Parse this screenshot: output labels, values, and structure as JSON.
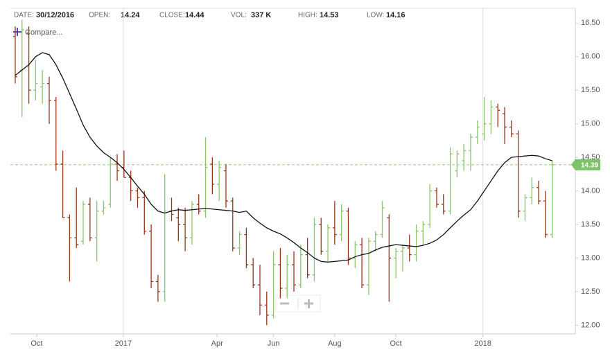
{
  "header": {
    "items": [
      {
        "label": "DATE:",
        "value": "30/12/2016"
      },
      {
        "label": "OPEN:",
        "value": "14.24"
      },
      {
        "label": "CLOSE:",
        "value": "14.44"
      },
      {
        "label": "VOL:",
        "value": "337 K"
      },
      {
        "label": "HIGH:",
        "value": "14.53"
      },
      {
        "label": "LOW:",
        "value": "14.16"
      }
    ],
    "compare": "Compare..."
  },
  "chart_data": {
    "type": "ohlc",
    "up_color": "#8cc56a",
    "down_color": "#9c3419",
    "open": [
      16.3,
      15.8,
      16.35,
      15.5,
      15.55,
      15.6,
      15.35,
      14.4,
      13.6,
      13.3,
      13.25,
      13.8,
      13.3,
      13.7,
      13.8,
      14.4,
      14.35,
      14.2,
      14.0,
      13.9,
      13.4,
      12.65,
      12.5,
      13.7,
      13.6,
      13.5,
      13.3,
      13.8,
      13.7,
      14.4,
      14.1,
      14.3,
      13.85,
      13.15,
      13.35,
      12.9,
      12.6,
      12.3,
      12.15,
      12.9,
      12.55,
      12.9,
      12.6,
      13.05,
      12.75,
      13.5,
      13.1,
      13.45,
      13.35,
      13.7,
      13.0,
      13.2,
      12.6,
      13.25,
      13.35,
      13.6,
      13.0,
      13.1,
      13.15,
      13.05,
      13.4,
      13.5,
      14.0,
      13.8,
      13.7,
      14.3,
      14.45,
      14.6,
      14.8,
      14.85,
      15.0,
      15.25,
      15.15,
      14.95,
      14.85,
      13.7,
      13.9,
      14.05,
      13.85,
      13.35
    ],
    "high": [
      16.45,
      16.55,
      16.45,
      15.95,
      15.8,
      15.7,
      15.4,
      14.6,
      13.65,
      14.05,
      13.85,
      13.9,
      13.85,
      13.85,
      14.5,
      14.55,
      14.6,
      14.3,
      14.05,
      14.0,
      13.5,
      12.75,
      14.25,
      13.9,
      13.75,
      13.75,
      13.85,
      13.95,
      14.8,
      14.5,
      14.45,
      14.4,
      13.9,
      13.4,
      13.45,
      13.0,
      12.9,
      12.5,
      13.1,
      13.15,
      13.05,
      13.1,
      13.2,
      13.3,
      13.6,
      13.6,
      13.5,
      13.85,
      13.8,
      13.75,
      13.25,
      13.3,
      13.3,
      13.4,
      13.85,
      13.65,
      13.15,
      13.2,
      13.35,
      13.5,
      13.55,
      14.1,
      14.05,
      13.95,
      14.65,
      14.6,
      14.7,
      14.85,
      15.05,
      15.4,
      15.35,
      15.3,
      15.25,
      15.05,
      14.9,
      13.95,
      14.2,
      14.15,
      14.0,
      14.45
    ],
    "low": [
      15.6,
      15.1,
      15.3,
      15.35,
      15.3,
      15.0,
      14.3,
      13.6,
      12.65,
      13.15,
      13.2,
      13.25,
      12.95,
      13.65,
      13.75,
      14.15,
      14.2,
      13.85,
      13.75,
      13.35,
      12.55,
      12.35,
      12.35,
      13.55,
      13.25,
      13.1,
      13.2,
      13.65,
      13.6,
      13.95,
      13.85,
      13.75,
      13.1,
      13.05,
      12.85,
      12.55,
      12.15,
      12.0,
      12.1,
      12.4,
      12.4,
      12.5,
      12.55,
      12.7,
      12.65,
      13.05,
      12.95,
      13.2,
      13.25,
      12.9,
      12.85,
      12.55,
      12.45,
      13.1,
      13.3,
      12.35,
      12.7,
      12.8,
      12.95,
      12.95,
      13.2,
      13.45,
      13.75,
      13.65,
      13.65,
      14.2,
      14.3,
      14.3,
      14.7,
      14.75,
      14.85,
      14.95,
      14.7,
      14.8,
      13.6,
      13.55,
      13.8,
      13.8,
      13.3,
      13.3
    ],
    "close": [
      15.7,
      16.4,
      15.5,
      15.6,
      15.6,
      15.35,
      14.4,
      13.6,
      13.3,
      13.2,
      13.8,
      13.3,
      13.7,
      13.75,
      14.4,
      14.3,
      14.2,
      14.0,
      13.9,
      13.4,
      12.65,
      12.5,
      13.7,
      13.65,
      13.5,
      13.3,
      13.8,
      13.7,
      14.35,
      14.1,
      14.35,
      13.85,
      13.15,
      13.35,
      12.9,
      12.6,
      12.3,
      12.15,
      12.9,
      12.55,
      12.9,
      12.6,
      13.05,
      12.75,
      13.5,
      13.1,
      13.45,
      13.35,
      13.7,
      13.0,
      13.2,
      12.6,
      13.25,
      13.35,
      13.75,
      13.0,
      13.1,
      13.15,
      13.05,
      13.4,
      13.5,
      14.0,
      13.8,
      13.7,
      14.55,
      14.55,
      14.6,
      14.8,
      14.95,
      15.0,
      15.25,
      15.2,
      14.95,
      14.85,
      13.7,
      13.9,
      14.05,
      13.85,
      13.35,
      14.39
    ],
    "ma": {
      "color": "#111111",
      "values": [
        15.72,
        15.8,
        15.88,
        16.0,
        16.06,
        16.03,
        15.88,
        15.68,
        15.45,
        15.22,
        14.98,
        14.8,
        14.67,
        14.57,
        14.5,
        14.42,
        14.32,
        14.2,
        14.07,
        13.95,
        13.8,
        13.7,
        13.67,
        13.7,
        13.72,
        13.71,
        13.72,
        13.73,
        13.74,
        13.73,
        13.72,
        13.71,
        13.7,
        13.68,
        13.7,
        13.6,
        13.52,
        13.45,
        13.4,
        13.36,
        13.3,
        13.23,
        13.15,
        13.08,
        13.0,
        12.95,
        12.94,
        12.95,
        12.96,
        12.97,
        13.02,
        13.05,
        13.07,
        13.12,
        13.16,
        13.18,
        13.2,
        13.19,
        13.18,
        13.17,
        13.19,
        13.22,
        13.27,
        13.35,
        13.45,
        13.55,
        13.64,
        13.72,
        13.85,
        14.0,
        14.15,
        14.3,
        14.42,
        14.5,
        14.51,
        14.52,
        14.53,
        14.52,
        14.48,
        14.45
      ]
    },
    "last_price": 14.39,
    "last_price_color": "#7cc36a",
    "xlim": [
      -0.71,
      82.4
    ],
    "xticks": [
      {
        "value": 3.16,
        "label": "Oct"
      },
      {
        "value": 15.9,
        "label": "2017"
      },
      {
        "value": 29.7,
        "label": "Apr"
      },
      {
        "value": 38.0,
        "label": "Jun"
      },
      {
        "value": 47.0,
        "label": "Aug"
      },
      {
        "value": 56.0,
        "label": "Oct"
      },
      {
        "value": 68.8,
        "label": "2018"
      }
    ],
    "ylim": [
      11.87,
      16.72
    ],
    "yticks": [
      {
        "value": 12,
        "label": "12.00"
      },
      {
        "value": 12.5,
        "label": "12.50"
      },
      {
        "value": 13,
        "label": "13.00"
      },
      {
        "value": 13.5,
        "label": "13.50"
      },
      {
        "value": 14,
        "label": "14.00"
      },
      {
        "value": 14.5,
        "label": "14.50"
      },
      {
        "value": 15,
        "label": "15.00"
      },
      {
        "value": 15.5,
        "label": "15.50"
      },
      {
        "value": 16,
        "label": "16.00"
      },
      {
        "value": 16.5,
        "label": "16.50"
      }
    ]
  }
}
